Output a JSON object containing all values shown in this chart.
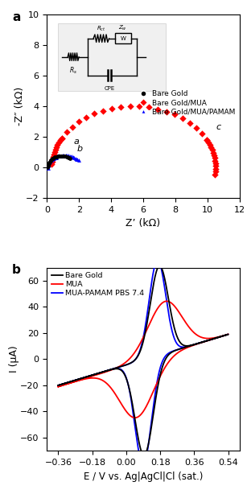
{
  "panel_a": {
    "xlabel": "Z’ (kΩ)",
    "ylabel": "-Z″ (kΩ)",
    "xlim": [
      0,
      12
    ],
    "ylim": [
      -2,
      10
    ],
    "xticks": [
      0,
      2,
      4,
      6,
      8,
      10,
      12
    ],
    "yticks": [
      -2,
      0,
      2,
      4,
      6,
      8,
      10
    ],
    "legend": [
      "Bare Gold",
      "Bare Gold/MUA",
      "Bare Gold/MUA/PAMAM"
    ],
    "legend_colors": [
      "black",
      "red",
      "blue"
    ],
    "legend_markers": [
      "o",
      "D",
      "^"
    ]
  },
  "panel_b": {
    "xlabel": "E / V vs. Ag|AgCl|Cl (sat.)",
    "ylabel": "I (μA)",
    "xlim": [
      -0.42,
      0.6
    ],
    "ylim": [
      -70,
      70
    ],
    "xticks": [
      -0.36,
      -0.18,
      0.0,
      0.18,
      0.36,
      0.54
    ],
    "yticks": [
      -60,
      -40,
      -20,
      0,
      20,
      40,
      60
    ],
    "legend": [
      "Bare Gold",
      "MUA",
      "MUA-PAMAM PBS 7.4"
    ],
    "legend_colors": [
      "black",
      "red",
      "blue"
    ]
  }
}
